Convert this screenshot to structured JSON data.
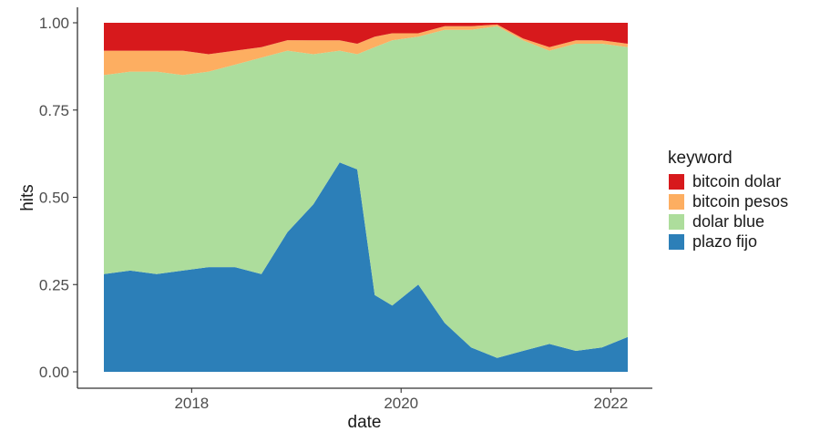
{
  "chart_data": {
    "type": "area",
    "stacked": "fill",
    "title": "",
    "xlabel": "date",
    "ylabel": "hits",
    "xlim": [
      "2017-03-01",
      "2022-03-01"
    ],
    "ylim": [
      0,
      1
    ],
    "x_ticks": [
      {
        "date": "2018-01-01",
        "label": "2018"
      },
      {
        "date": "2020-01-01",
        "label": "2020"
      },
      {
        "date": "2022-01-01",
        "label": "2022"
      }
    ],
    "y_ticks": [
      {
        "value": 0,
        "label": "0.00"
      },
      {
        "value": 0.25,
        "label": "0.25"
      },
      {
        "value": 0.5,
        "label": "0.50"
      },
      {
        "value": 0.75,
        "label": "0.75"
      },
      {
        "value": 1,
        "label": "1.00"
      }
    ],
    "grid": false,
    "legend": {
      "title": "keyword",
      "placement": "right"
    },
    "x": [
      "2017-03-01",
      "2017-06-01",
      "2017-09-01",
      "2017-12-01",
      "2018-03-01",
      "2018-06-01",
      "2018-09-01",
      "2018-12-01",
      "2019-03-01",
      "2019-06-01",
      "2019-08-01",
      "2019-10-01",
      "2019-12-01",
      "2020-03-01",
      "2020-06-01",
      "2020-09-01",
      "2020-12-01",
      "2021-03-01",
      "2021-06-01",
      "2021-09-01",
      "2021-12-01",
      "2022-03-01"
    ],
    "series": [
      {
        "name": "plazo fijo",
        "color": "#2c7fb8",
        "values": [
          0.28,
          0.29,
          0.28,
          0.29,
          0.3,
          0.3,
          0.28,
          0.4,
          0.48,
          0.6,
          0.58,
          0.22,
          0.19,
          0.25,
          0.14,
          0.07,
          0.04,
          0.06,
          0.08,
          0.06,
          0.07,
          0.1
        ]
      },
      {
        "name": "dolar blue",
        "color": "#addd9c",
        "values": [
          0.57,
          0.57,
          0.58,
          0.56,
          0.56,
          0.58,
          0.62,
          0.52,
          0.43,
          0.32,
          0.33,
          0.71,
          0.76,
          0.71,
          0.84,
          0.91,
          0.95,
          0.89,
          0.84,
          0.88,
          0.87,
          0.83
        ]
      },
      {
        "name": "bitcoin pesos",
        "color": "#fdae61",
        "values": [
          0.07,
          0.06,
          0.06,
          0.07,
          0.05,
          0.04,
          0.03,
          0.03,
          0.04,
          0.03,
          0.03,
          0.03,
          0.02,
          0.01,
          0.01,
          0.01,
          0.005,
          0.005,
          0.01,
          0.01,
          0.01,
          0.01
        ]
      },
      {
        "name": "bitcoin dolar",
        "color": "#d7191c",
        "values": [
          0.07,
          0.08,
          0.08,
          0.08,
          0.09,
          0.08,
          0.07,
          0.05,
          0.05,
          0.05,
          0.06,
          0.04,
          0.03,
          0.03,
          0.01,
          0.01,
          0.005,
          0.045,
          0.07,
          0.05,
          0.05,
          0.06
        ]
      }
    ]
  }
}
